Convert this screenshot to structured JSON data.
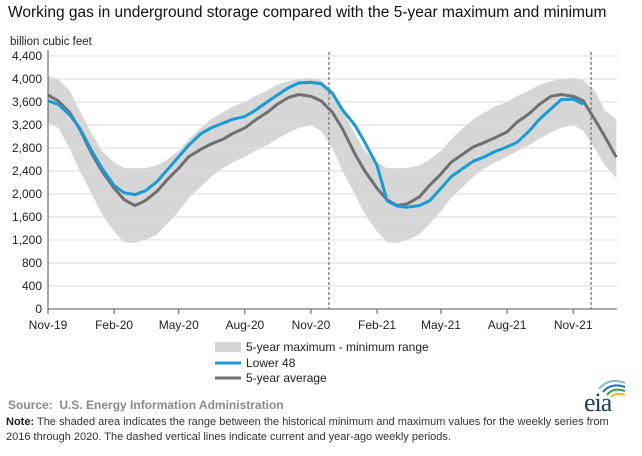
{
  "title": "Working gas in underground  storage compared with the 5-year maximum and minimum",
  "unit_label": "billion cubic feet",
  "source_label": "Source:",
  "source": "U.S. Energy Information Administration",
  "note_label": "Note:",
  "note": "The shaded area indicates the range between the historical minimum and maximum values for the weekly series from 2016 through 2020. The dashed vertical lines indicate current and year-ago weekly periods.",
  "logo_text": "eia",
  "colors": {
    "range": "#d6d6d6",
    "lower48": "#1a9bd7",
    "avg": "#707070",
    "grid": "#d9d9d9",
    "dashed": "#8a8a8a"
  },
  "chart_data": {
    "type": "area",
    "ylabel": "billion cubic feet",
    "ylim": [
      0,
      4400
    ],
    "yticks": [
      "0",
      "400",
      "800",
      "1,200",
      "1,600",
      "2,000",
      "2,400",
      "2,800",
      "3,200",
      "3,600",
      "4,000",
      "4,400"
    ],
    "ytick_values": [
      0,
      400,
      800,
      1200,
      1600,
      2000,
      2400,
      2800,
      3200,
      3600,
      4000,
      4400
    ],
    "xlim": [
      "2019-11-01",
      "2022-01-01"
    ],
    "xticks": [
      "Nov-19",
      "Feb-20",
      "May-20",
      "Aug-20",
      "Nov-20",
      "Feb-21",
      "May-21",
      "Aug-21",
      "Nov-21"
    ],
    "xtick_dates": [
      "2019-11-01",
      "2020-02-01",
      "2020-05-01",
      "2020-08-01",
      "2020-11-01",
      "2021-02-01",
      "2021-05-01",
      "2021-08-01",
      "2021-11-01"
    ],
    "grid": true,
    "legend_position": "bottom-center",
    "dashed_lines": [
      "2020-11-26",
      "2021-11-26"
    ],
    "series": [
      {
        "name": "5-year maximum - minimum range",
        "kind": "band",
        "points": [
          [
            "2019-11-01",
            4050,
            3250
          ],
          [
            "2019-11-15",
            4000,
            3150
          ],
          [
            "2019-12-01",
            3800,
            2800
          ],
          [
            "2019-12-15",
            3450,
            2400
          ],
          [
            "2020-01-01",
            3050,
            2000
          ],
          [
            "2020-01-15",
            2750,
            1650
          ],
          [
            "2020-02-01",
            2550,
            1350
          ],
          [
            "2020-02-15",
            2450,
            1160
          ],
          [
            "2020-03-01",
            2450,
            1150
          ],
          [
            "2020-03-15",
            2450,
            1200
          ],
          [
            "2020-04-01",
            2500,
            1300
          ],
          [
            "2020-04-15",
            2600,
            1480
          ],
          [
            "2020-05-01",
            2750,
            1700
          ],
          [
            "2020-05-15",
            2950,
            1930
          ],
          [
            "2020-06-01",
            3150,
            2130
          ],
          [
            "2020-06-15",
            3300,
            2300
          ],
          [
            "2020-07-01",
            3420,
            2450
          ],
          [
            "2020-07-15",
            3520,
            2550
          ],
          [
            "2020-08-01",
            3600,
            2650
          ],
          [
            "2020-08-15",
            3700,
            2750
          ],
          [
            "2020-09-01",
            3800,
            2850
          ],
          [
            "2020-09-15",
            3900,
            2960
          ],
          [
            "2020-10-01",
            3960,
            3070
          ],
          [
            "2020-10-15",
            4000,
            3150
          ],
          [
            "2020-11-01",
            4020,
            3200
          ],
          [
            "2020-11-15",
            3980,
            3100
          ],
          [
            "2020-12-01",
            3800,
            2800
          ],
          [
            "2020-12-15",
            3450,
            2400
          ],
          [
            "2021-01-01",
            3050,
            2000
          ],
          [
            "2021-01-15",
            2750,
            1650
          ],
          [
            "2021-02-01",
            2550,
            1350
          ],
          [
            "2021-02-15",
            2450,
            1160
          ],
          [
            "2021-03-01",
            2450,
            1150
          ],
          [
            "2021-03-15",
            2450,
            1200
          ],
          [
            "2021-04-01",
            2500,
            1300
          ],
          [
            "2021-04-15",
            2600,
            1480
          ],
          [
            "2021-05-01",
            2750,
            1700
          ],
          [
            "2021-05-15",
            2950,
            1930
          ],
          [
            "2021-06-01",
            3150,
            2130
          ],
          [
            "2021-06-15",
            3300,
            2300
          ],
          [
            "2021-07-01",
            3420,
            2450
          ],
          [
            "2021-07-15",
            3520,
            2550
          ],
          [
            "2021-08-01",
            3600,
            2650
          ],
          [
            "2021-08-15",
            3700,
            2750
          ],
          [
            "2021-09-01",
            3800,
            2850
          ],
          [
            "2021-09-15",
            3900,
            2960
          ],
          [
            "2021-10-01",
            3960,
            3070
          ],
          [
            "2021-10-15",
            4000,
            3150
          ],
          [
            "2021-11-01",
            4020,
            3200
          ],
          [
            "2021-11-15",
            3980,
            3100
          ],
          [
            "2021-12-01",
            3800,
            2800
          ],
          [
            "2021-12-15",
            3450,
            2500
          ],
          [
            "2021-12-31",
            3300,
            2280
          ]
        ]
      },
      {
        "name": "Lower 48",
        "kind": "line",
        "points": [
          [
            "2019-11-01",
            3620
          ],
          [
            "2019-11-15",
            3560
          ],
          [
            "2019-12-01",
            3380
          ],
          [
            "2019-12-15",
            3150
          ],
          [
            "2020-01-01",
            2750
          ],
          [
            "2020-01-15",
            2450
          ],
          [
            "2020-02-01",
            2150
          ],
          [
            "2020-02-15",
            2020
          ],
          [
            "2020-03-01",
            1990
          ],
          [
            "2020-03-15",
            2050
          ],
          [
            "2020-04-01",
            2220
          ],
          [
            "2020-04-15",
            2420
          ],
          [
            "2020-05-01",
            2650
          ],
          [
            "2020-05-15",
            2850
          ],
          [
            "2020-06-01",
            3050
          ],
          [
            "2020-06-15",
            3150
          ],
          [
            "2020-07-01",
            3230
          ],
          [
            "2020-07-15",
            3300
          ],
          [
            "2020-08-01",
            3350
          ],
          [
            "2020-08-15",
            3450
          ],
          [
            "2020-09-01",
            3600
          ],
          [
            "2020-09-15",
            3720
          ],
          [
            "2020-10-01",
            3850
          ],
          [
            "2020-10-15",
            3930
          ],
          [
            "2020-11-01",
            3940
          ],
          [
            "2020-11-15",
            3920
          ],
          [
            "2020-12-01",
            3750
          ],
          [
            "2020-12-15",
            3460
          ],
          [
            "2021-01-01",
            3200
          ],
          [
            "2021-01-15",
            2900
          ],
          [
            "2021-02-01",
            2500
          ],
          [
            "2021-02-15",
            1880
          ],
          [
            "2021-03-01",
            1790
          ],
          [
            "2021-03-15",
            1770
          ],
          [
            "2021-04-01",
            1800
          ],
          [
            "2021-04-15",
            1880
          ],
          [
            "2021-05-01",
            2100
          ],
          [
            "2021-05-15",
            2300
          ],
          [
            "2021-06-01",
            2450
          ],
          [
            "2021-06-15",
            2570
          ],
          [
            "2021-07-01",
            2650
          ],
          [
            "2021-07-15",
            2740
          ],
          [
            "2021-08-01",
            2820
          ],
          [
            "2021-08-15",
            2900
          ],
          [
            "2021-09-01",
            3100
          ],
          [
            "2021-09-15",
            3300
          ],
          [
            "2021-10-01",
            3480
          ],
          [
            "2021-10-15",
            3640
          ],
          [
            "2021-11-01",
            3650
          ],
          [
            "2021-11-15",
            3560
          ]
        ]
      },
      {
        "name": "5-year average",
        "kind": "line",
        "points": [
          [
            "2019-11-01",
            3720
          ],
          [
            "2019-11-15",
            3620
          ],
          [
            "2019-12-01",
            3420
          ],
          [
            "2019-12-15",
            3130
          ],
          [
            "2020-01-01",
            2700
          ],
          [
            "2020-01-15",
            2400
          ],
          [
            "2020-02-01",
            2100
          ],
          [
            "2020-02-15",
            1900
          ],
          [
            "2020-03-01",
            1800
          ],
          [
            "2020-03-15",
            1880
          ],
          [
            "2020-04-01",
            2050
          ],
          [
            "2020-04-15",
            2250
          ],
          [
            "2020-05-01",
            2450
          ],
          [
            "2020-05-15",
            2650
          ],
          [
            "2020-06-01",
            2780
          ],
          [
            "2020-06-15",
            2870
          ],
          [
            "2020-07-01",
            2950
          ],
          [
            "2020-07-15",
            3050
          ],
          [
            "2020-08-01",
            3150
          ],
          [
            "2020-08-15",
            3280
          ],
          [
            "2020-09-01",
            3420
          ],
          [
            "2020-09-15",
            3560
          ],
          [
            "2020-10-01",
            3680
          ],
          [
            "2020-10-15",
            3730
          ],
          [
            "2020-11-01",
            3700
          ],
          [
            "2020-11-15",
            3620
          ],
          [
            "2020-12-01",
            3420
          ],
          [
            "2020-12-15",
            3130
          ],
          [
            "2021-01-01",
            2700
          ],
          [
            "2021-01-15",
            2400
          ],
          [
            "2021-02-01",
            2100
          ],
          [
            "2021-02-15",
            1900
          ],
          [
            "2021-03-01",
            1800
          ],
          [
            "2021-03-15",
            1830
          ],
          [
            "2021-04-01",
            1950
          ],
          [
            "2021-04-15",
            2150
          ],
          [
            "2021-05-01",
            2350
          ],
          [
            "2021-05-15",
            2550
          ],
          [
            "2021-06-01",
            2700
          ],
          [
            "2021-06-15",
            2820
          ],
          [
            "2021-07-01",
            2900
          ],
          [
            "2021-07-15",
            2980
          ],
          [
            "2021-08-01",
            3080
          ],
          [
            "2021-08-15",
            3250
          ],
          [
            "2021-09-01",
            3400
          ],
          [
            "2021-09-15",
            3560
          ],
          [
            "2021-10-01",
            3700
          ],
          [
            "2021-10-15",
            3730
          ],
          [
            "2021-11-01",
            3700
          ],
          [
            "2021-11-15",
            3620
          ],
          [
            "2021-12-01",
            3300
          ],
          [
            "2021-12-15",
            3000
          ],
          [
            "2021-12-31",
            2640
          ]
        ]
      }
    ]
  }
}
